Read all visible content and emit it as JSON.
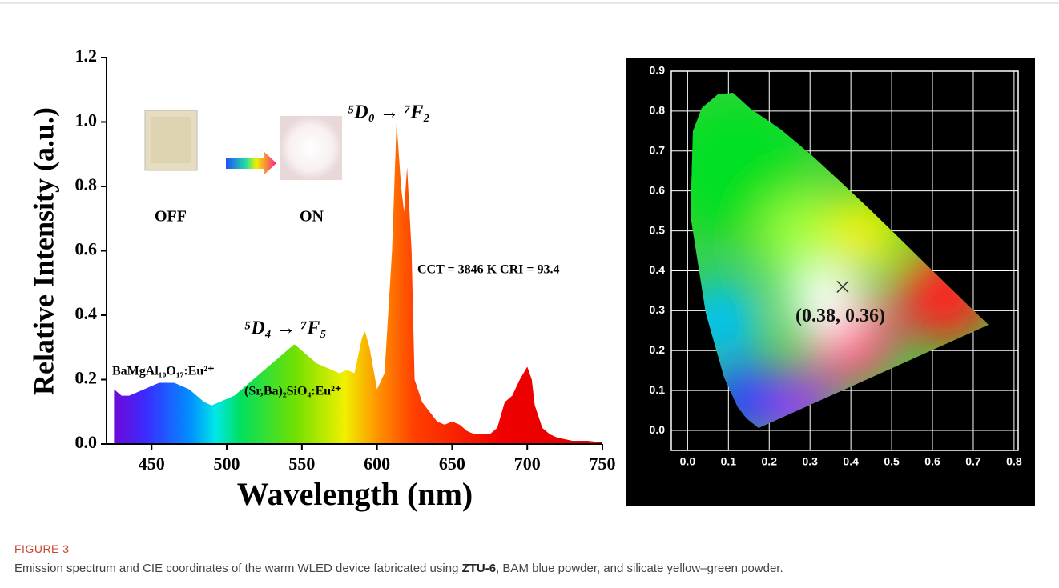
{
  "chart_data": [
    {
      "type": "area",
      "x_label": "Wavelength (nm)",
      "y_label": "Relative Intensity (a.u.)",
      "x": [
        425,
        430,
        435,
        440,
        445,
        450,
        455,
        460,
        465,
        470,
        475,
        480,
        485,
        490,
        495,
        500,
        505,
        510,
        515,
        520,
        525,
        530,
        535,
        540,
        545,
        550,
        555,
        560,
        565,
        570,
        575,
        580,
        585,
        590,
        592,
        595,
        600,
        605,
        610,
        613,
        616,
        618,
        620,
        623,
        625,
        630,
        635,
        640,
        645,
        650,
        655,
        660,
        665,
        670,
        675,
        680,
        685,
        690,
        695,
        700,
        703,
        705,
        710,
        715,
        720,
        730,
        740,
        750
      ],
      "y": [
        0.17,
        0.15,
        0.15,
        0.16,
        0.17,
        0.18,
        0.19,
        0.19,
        0.19,
        0.18,
        0.17,
        0.15,
        0.13,
        0.12,
        0.13,
        0.14,
        0.15,
        0.17,
        0.19,
        0.21,
        0.23,
        0.25,
        0.27,
        0.29,
        0.31,
        0.29,
        0.27,
        0.25,
        0.24,
        0.23,
        0.22,
        0.23,
        0.22,
        0.33,
        0.35,
        0.3,
        0.17,
        0.22,
        0.6,
        1.0,
        0.8,
        0.72,
        0.86,
        0.6,
        0.2,
        0.13,
        0.1,
        0.07,
        0.06,
        0.07,
        0.06,
        0.04,
        0.03,
        0.03,
        0.03,
        0.05,
        0.13,
        0.15,
        0.2,
        0.24,
        0.2,
        0.12,
        0.05,
        0.03,
        0.02,
        0.01,
        0.01,
        0.005
      ],
      "xlim": [
        420,
        750
      ],
      "ylim": [
        0,
        1.2
      ],
      "xticks": [
        450,
        500,
        550,
        600,
        650,
        700,
        750
      ],
      "yticks": [
        {
          "value": 0,
          "label": "0.0"
        },
        0.2,
        0.4,
        0.6,
        0.8,
        {
          "value": 1,
          "label": "1.0"
        },
        1.2
      ],
      "annotations": [
        "⁵D₀ → ⁷F₂",
        "⁵D₄ → ⁷F₅",
        "BaMgAl₁₀O₁₇:Eu²⁺",
        "(Sr,Ba)₂SiO₄:Eu²⁺",
        "CCT = 3846 K  CRI = 93.4",
        "OFF",
        "ON"
      ]
    },
    {
      "type": "scatter",
      "x": [
        0.38
      ],
      "y": [
        0.36
      ],
      "point_label": "(0.38, 0.36)",
      "xlim": [
        -0.04,
        0.81
      ],
      "ylim": [
        -0.05,
        0.9
      ],
      "xticks": [
        {
          "value": 0,
          "label": "0.0"
        },
        0.1,
        0.2,
        0.3,
        0.4,
        0.5,
        0.6,
        0.7,
        0.8
      ],
      "yticks": [
        {
          "value": 0,
          "label": "0.0"
        },
        0.1,
        0.2,
        0.3,
        0.4,
        0.5,
        0.6,
        0.7,
        0.8,
        0.9
      ],
      "grid": true
    }
  ],
  "caption": {
    "label": "FIGURE 3",
    "text_before": "Emission spectrum and CIE coordinates of the warm WLED device fabricated using ",
    "bold": "ZTU-6",
    "text_after": ", BAM blue powder, and silicate yellow–green powder."
  }
}
